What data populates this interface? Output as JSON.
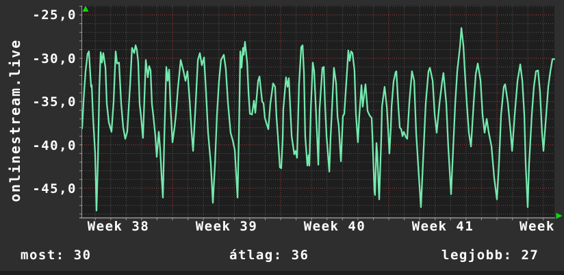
{
  "watermark": "onlinestream.live",
  "footer": {
    "most": "most: 30",
    "atlag": "átlag: 36",
    "legjobb": "legjobb: 27"
  },
  "colors": {
    "background": "#2e2e2e",
    "plot_background": "#1e1e1e",
    "grid_minor": "#555555",
    "grid_major": "#a04545",
    "axis": "#999999",
    "arrow": "#10d610",
    "text": "#ffffff",
    "bottom_strip": "#1d1d1d"
  },
  "chart_data": {
    "type": "line",
    "title": "",
    "xlabel": "",
    "ylabel": "",
    "grid": true,
    "legend": "none",
    "x_axis": {
      "unit": "days",
      "range_days": [
        0,
        30.57
      ],
      "labels": [
        "Week 38",
        "Week 39",
        "Week 40",
        "Week 41",
        "Week"
      ],
      "week_boundary_days": [
        5.85,
        12.85,
        19.85,
        26.85
      ],
      "minor_grid_step_days": 1
    },
    "y_axis": {
      "tick_labels": [
        "-25,0",
        "-30,0",
        "-35,0",
        "-40,0",
        "-45,0"
      ],
      "tick_values": [
        -25,
        -30,
        -35,
        -40,
        -45
      ],
      "ylim": [
        -48.4,
        -23.9
      ],
      "minor_grid_step": 1
    },
    "summary": {
      "most": 30,
      "atlag": 36,
      "legjobb": 27
    },
    "series": [
      {
        "name": "onlinestream.live",
        "color": "#74e9ae",
        "points": [
          [
            0,
            -38.1
          ],
          [
            0.09,
            -35.0
          ],
          [
            0.22,
            -31.5
          ],
          [
            0.35,
            -29.5
          ],
          [
            0.44,
            -29.2
          ],
          [
            0.58,
            -33.3
          ],
          [
            0.62,
            -33.1
          ],
          [
            0.71,
            -36.9
          ],
          [
            0.84,
            -41.0
          ],
          [
            0.93,
            -47.6
          ],
          [
            1.02,
            -42.0
          ],
          [
            1.11,
            -33.5
          ],
          [
            1.2,
            -29.3
          ],
          [
            1.28,
            -30.5
          ],
          [
            1.37,
            -29.4
          ],
          [
            1.51,
            -31.1
          ],
          [
            1.6,
            -35.3
          ],
          [
            1.73,
            -37.4
          ],
          [
            1.9,
            -38.5
          ],
          [
            2.04,
            -35.0
          ],
          [
            2.17,
            -29.2
          ],
          [
            2.26,
            -30.6
          ],
          [
            2.39,
            -30.5
          ],
          [
            2.53,
            -35.3
          ],
          [
            2.66,
            -38.0
          ],
          [
            2.79,
            -39.3
          ],
          [
            2.92,
            -38.5
          ],
          [
            3.1,
            -33.2
          ],
          [
            3.23,
            -28.8
          ],
          [
            3.37,
            -29.4
          ],
          [
            3.46,
            -28.5
          ],
          [
            3.54,
            -29.0
          ],
          [
            3.63,
            -30.4
          ],
          [
            3.72,
            -35.3
          ],
          [
            3.81,
            -36.7
          ],
          [
            3.94,
            -39.2
          ],
          [
            4.12,
            -30.2
          ],
          [
            4.25,
            -32.2
          ],
          [
            4.34,
            -30.9
          ],
          [
            4.43,
            -31.4
          ],
          [
            4.52,
            -35.3
          ],
          [
            4.61,
            -36.7
          ],
          [
            4.74,
            -39.0
          ],
          [
            4.83,
            -41.4
          ],
          [
            4.96,
            -38.5
          ],
          [
            5.05,
            -40.5
          ],
          [
            5.14,
            -43.5
          ],
          [
            5.23,
            -46.1
          ],
          [
            5.32,
            -39.0
          ],
          [
            5.45,
            -31.0
          ],
          [
            5.54,
            -32.6
          ],
          [
            5.63,
            -31.3
          ],
          [
            5.72,
            -35.6
          ],
          [
            5.85,
            -39.7
          ],
          [
            5.98,
            -38.0
          ],
          [
            6.07,
            -36.5
          ],
          [
            6.2,
            -33.5
          ],
          [
            6.38,
            -30.2
          ],
          [
            6.56,
            -31.5
          ],
          [
            6.69,
            -32.6
          ],
          [
            6.82,
            -31.5
          ],
          [
            6.96,
            -34.9
          ],
          [
            7.09,
            -38.6
          ],
          [
            7.18,
            -40.7
          ],
          [
            7.35,
            -35.2
          ],
          [
            7.49,
            -30.2
          ],
          [
            7.62,
            -29.4
          ],
          [
            7.75,
            -30.8
          ],
          [
            7.89,
            -29.9
          ],
          [
            8.02,
            -33.9
          ],
          [
            8.15,
            -38.6
          ],
          [
            8.33,
            -42.2
          ],
          [
            8.46,
            -46.7
          ],
          [
            8.6,
            -42.2
          ],
          [
            8.73,
            -36.5
          ],
          [
            8.86,
            -32.6
          ],
          [
            8.99,
            -30.2
          ],
          [
            9.17,
            -29.6
          ],
          [
            9.3,
            -31.2
          ],
          [
            9.44,
            -35.2
          ],
          [
            9.61,
            -38.6
          ],
          [
            9.75,
            -39.5
          ],
          [
            9.88,
            -40.6
          ],
          [
            10.06,
            -46.1
          ],
          [
            10.15,
            -38.5
          ],
          [
            10.24,
            -29.2
          ],
          [
            10.32,
            -31.1
          ],
          [
            10.41,
            -28.8
          ],
          [
            10.46,
            -29.6
          ],
          [
            10.54,
            -28.1
          ],
          [
            10.68,
            -30.5
          ],
          [
            10.77,
            -34.0
          ],
          [
            10.86,
            -36.4
          ],
          [
            10.99,
            -36.5
          ],
          [
            11.12,
            -34.9
          ],
          [
            11.21,
            -36.3
          ],
          [
            11.39,
            -32.6
          ],
          [
            11.48,
            -32.1
          ],
          [
            11.65,
            -35.0
          ],
          [
            11.74,
            -35.2
          ],
          [
            11.83,
            -36.9
          ],
          [
            12.05,
            -38.2
          ],
          [
            12.18,
            -35.3
          ],
          [
            12.36,
            -32.9
          ],
          [
            12.49,
            -33.3
          ],
          [
            12.58,
            -36.7
          ],
          [
            12.67,
            -39.0
          ],
          [
            12.8,
            -42.6
          ],
          [
            12.89,
            -42.7
          ],
          [
            12.98,
            -39.3
          ],
          [
            13.02,
            -35.9
          ],
          [
            13.2,
            -32.2
          ],
          [
            13.29,
            -33.3
          ],
          [
            13.38,
            -32.3
          ],
          [
            13.47,
            -35.6
          ],
          [
            13.56,
            -39.0
          ],
          [
            13.73,
            -41.1
          ],
          [
            13.82,
            -40.7
          ],
          [
            13.91,
            -41.5
          ],
          [
            14.04,
            -33.0
          ],
          [
            14.18,
            -28.7
          ],
          [
            14.27,
            -28.5
          ],
          [
            14.36,
            -31.7
          ],
          [
            14.44,
            -39.0
          ],
          [
            14.58,
            -42.4
          ],
          [
            14.66,
            -41.2
          ],
          [
            14.71,
            -42.4
          ],
          [
            14.8,
            -35.9
          ],
          [
            14.93,
            -30.5
          ],
          [
            15.02,
            -31.5
          ],
          [
            15.15,
            -36.7
          ],
          [
            15.29,
            -42.3
          ],
          [
            15.37,
            -35.9
          ],
          [
            15.55,
            -31.1
          ],
          [
            15.64,
            -31.0
          ],
          [
            15.73,
            -35.6
          ],
          [
            15.82,
            -39.0
          ],
          [
            16.0,
            -43.1
          ],
          [
            16.08,
            -39.3
          ],
          [
            16.17,
            -35.9
          ],
          [
            16.3,
            -31.1
          ],
          [
            16.44,
            -32.9
          ],
          [
            16.53,
            -36.7
          ],
          [
            16.61,
            -37.8
          ],
          [
            16.75,
            -41.9
          ],
          [
            16.88,
            -36.7
          ],
          [
            16.97,
            -36.4
          ],
          [
            17.15,
            -31.4
          ],
          [
            17.23,
            -29.1
          ],
          [
            17.32,
            -30.3
          ],
          [
            17.41,
            -29.2
          ],
          [
            17.5,
            -29.4
          ],
          [
            17.63,
            -31.4
          ],
          [
            17.72,
            -36.4
          ],
          [
            17.85,
            -39.7
          ],
          [
            17.94,
            -36.7
          ],
          [
            18.08,
            -33.1
          ],
          [
            18.16,
            -35.6
          ],
          [
            18.25,
            -34.3
          ],
          [
            18.34,
            -33.0
          ],
          [
            18.48,
            -36.1
          ],
          [
            18.61,
            -36.6
          ],
          [
            18.74,
            -36.9
          ],
          [
            18.79,
            -39.0
          ],
          [
            18.92,
            -45.3
          ],
          [
            18.96,
            -45.8
          ],
          [
            19.05,
            -39.8
          ],
          [
            19.1,
            -40.9
          ],
          [
            19.23,
            -46.3
          ],
          [
            19.36,
            -39.3
          ],
          [
            19.41,
            -35.6
          ],
          [
            19.58,
            -33.3
          ],
          [
            19.72,
            -35.6
          ],
          [
            19.8,
            -38.0
          ],
          [
            19.89,
            -41.0
          ],
          [
            19.98,
            -38.0
          ],
          [
            20.03,
            -35.6
          ],
          [
            20.16,
            -32.7
          ],
          [
            20.29,
            -31.6
          ],
          [
            20.34,
            -31.5
          ],
          [
            20.47,
            -35.6
          ],
          [
            20.56,
            -38.0
          ],
          [
            20.65,
            -38.2
          ],
          [
            20.74,
            -39.0
          ],
          [
            20.82,
            -38.5
          ],
          [
            20.96,
            -39.1
          ],
          [
            21.04,
            -39.3
          ],
          [
            21.18,
            -35.0
          ],
          [
            21.35,
            -31.5
          ],
          [
            21.49,
            -32.6
          ],
          [
            21.62,
            -38.6
          ],
          [
            21.8,
            -43.8
          ],
          [
            21.93,
            -47.2
          ],
          [
            22.06,
            -42.2
          ],
          [
            22.24,
            -35.2
          ],
          [
            22.42,
            -31.5
          ],
          [
            22.51,
            -31.1
          ],
          [
            22.69,
            -32.6
          ],
          [
            22.82,
            -36.5
          ],
          [
            22.95,
            -38.6
          ],
          [
            23.13,
            -35.2
          ],
          [
            23.31,
            -32.6
          ],
          [
            23.39,
            -31.7
          ],
          [
            23.57,
            -35.2
          ],
          [
            23.7,
            -40.2
          ],
          [
            23.88,
            -45.7
          ],
          [
            24.01,
            -40.7
          ],
          [
            24.15,
            -35.2
          ],
          [
            24.28,
            -31.5
          ],
          [
            24.46,
            -28.6
          ],
          [
            24.55,
            -26.5
          ],
          [
            24.68,
            -28.6
          ],
          [
            24.77,
            -31.5
          ],
          [
            24.9,
            -35.2
          ],
          [
            25.03,
            -38.6
          ],
          [
            25.17,
            -40.2
          ],
          [
            25.34,
            -35.2
          ],
          [
            25.48,
            -31.8
          ],
          [
            25.61,
            -30.6
          ],
          [
            25.79,
            -32.6
          ],
          [
            25.92,
            -36.5
          ],
          [
            26.05,
            -38.6
          ],
          [
            26.19,
            -37.0
          ],
          [
            26.32,
            -38.6
          ],
          [
            26.5,
            -40.2
          ],
          [
            26.67,
            -43.8
          ],
          [
            26.85,
            -46.3
          ],
          [
            26.98,
            -42.2
          ],
          [
            27.12,
            -36.5
          ],
          [
            27.29,
            -33.3
          ],
          [
            27.38,
            -33.0
          ],
          [
            27.56,
            -35.2
          ],
          [
            27.74,
            -38.6
          ],
          [
            27.83,
            -40.7
          ],
          [
            28.0,
            -36.5
          ],
          [
            28.18,
            -32.6
          ],
          [
            28.36,
            -30.7
          ],
          [
            28.49,
            -32.6
          ],
          [
            28.62,
            -36.5
          ],
          [
            28.71,
            -42.2
          ],
          [
            28.84,
            -47.2
          ],
          [
            28.93,
            -42.2
          ],
          [
            29.11,
            -36.5
          ],
          [
            29.24,
            -33.3
          ],
          [
            29.38,
            -31.5
          ],
          [
            29.51,
            -31.4
          ],
          [
            29.64,
            -33.9
          ],
          [
            29.77,
            -38.6
          ],
          [
            29.86,
            -40.7
          ],
          [
            30.04,
            -36.5
          ],
          [
            30.17,
            -33.3
          ],
          [
            30.31,
            -31.5
          ],
          [
            30.44,
            -30.1
          ],
          [
            30.57,
            -30.1
          ]
        ]
      }
    ]
  }
}
